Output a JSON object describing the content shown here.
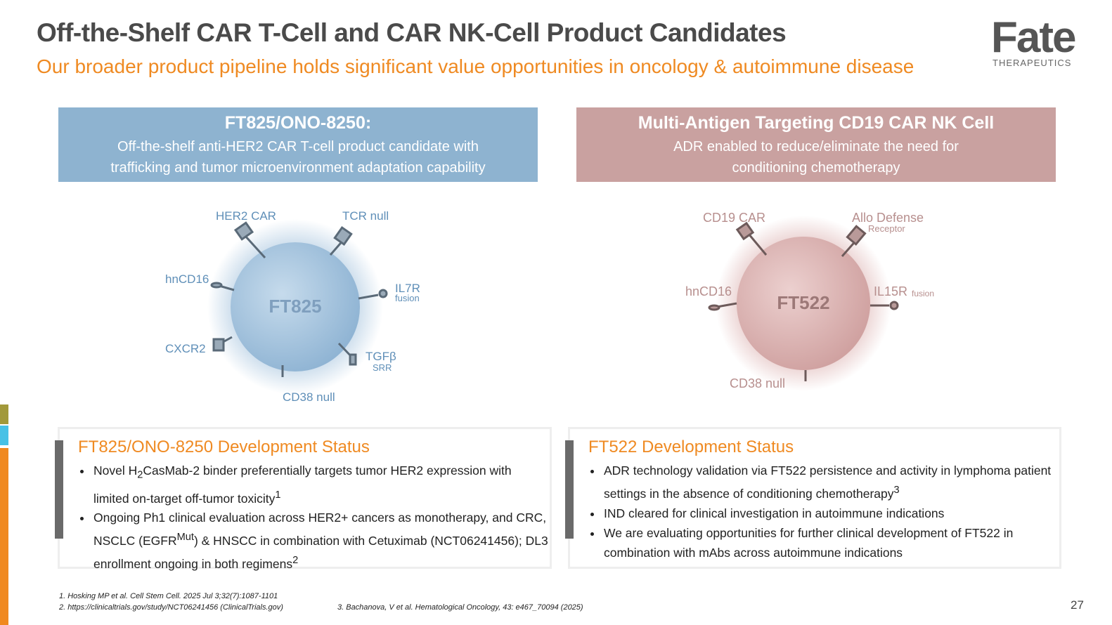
{
  "header": {
    "title": "Off-the-Shelf CAR T-Cell and CAR NK-Cell Product Candidates",
    "subtitle": "Our broader product pipeline holds significant value opportunities in oncology & autoimmune disease"
  },
  "logo": {
    "word": "Fate",
    "sub": "THERAPEUTICS"
  },
  "left_banner": {
    "title": "FT825/ONO-8250:",
    "line1": "Off-the-shelf anti-HER2 CAR T-cell product candidate with",
    "line2": "trafficking and tumor microenvironment adaptation capability"
  },
  "right_banner": {
    "title": "Multi-Antigen Targeting CD19 CAR NK Cell",
    "line1": "ADR enabled to reduce/eliminate the need for",
    "line2": "conditioning chemotherapy"
  },
  "left_cell": {
    "name": "FT825",
    "labels": {
      "her2": "HER2 CAR",
      "tcr": "TCR null",
      "hncd16": "hnCD16",
      "il7r": "IL7R",
      "il7r_sub": "fusion",
      "cxcr2": "CXCR2",
      "tgfb": "TGFβ",
      "tgfb_sub": "SRR",
      "cd38": "CD38 null"
    }
  },
  "right_cell": {
    "name": "FT522",
    "labels": {
      "cd19": "CD19 CAR",
      "allo": "Allo Defense",
      "allo_sub": "Receptor",
      "hncd16": "hnCD16",
      "il15r": "IL15R",
      "il15r_sub": "fusion",
      "cd38": "CD38 null"
    }
  },
  "left_status": {
    "title": "FT825/ONO-8250 Development Status",
    "b1_a": "Novel H",
    "b1_sub": "2",
    "b1_b": "CasMab-2 binder preferentially targets tumor HER2 expression with limited on-target off-tumor toxicity",
    "b1_sup": "1",
    "b2_a": "Ongoing Ph1 clinical evaluation across HER2+ cancers as monotherapy, and CRC, NSCLC (EGFR",
    "b2_sup": "Mut",
    "b2_b": ") & HNSCC in combination with Cetuximab (NCT06241456); DL3 enrollment ongoing in both regimens",
    "b2_sup2": "2"
  },
  "right_status": {
    "title": "FT522 Development Status",
    "b1": "ADR technology validation via FT522 persistence and activity in lymphoma patient settings in the absence of conditioning chemotherapy",
    "b1_sup": "3",
    "b2": "IND cleared for clinical investigation in autoimmune indications",
    "b3": "We are evaluating opportunities for further clinical development of FT522 in combination with mAbs across autoimmune indications"
  },
  "footnotes": {
    "f1": "1. Hosking MP et al. Cell Stem Cell. 2025 Jul 3;32(7):1087-1101",
    "f2": "2. https://clinicaltrials.gov/study/NCT06241456 (ClinicalTrials.gov)",
    "f3": "3. Bachanova, V et al. Hematological Oncology, 43: e467_70094 (2025)"
  },
  "page_number": "27",
  "colors": {
    "orange": "#ef8a22",
    "blue": "#8eb3d0",
    "pink": "#c9a1a0",
    "olive": "#a2993a",
    "cyan": "#47c1e6"
  }
}
